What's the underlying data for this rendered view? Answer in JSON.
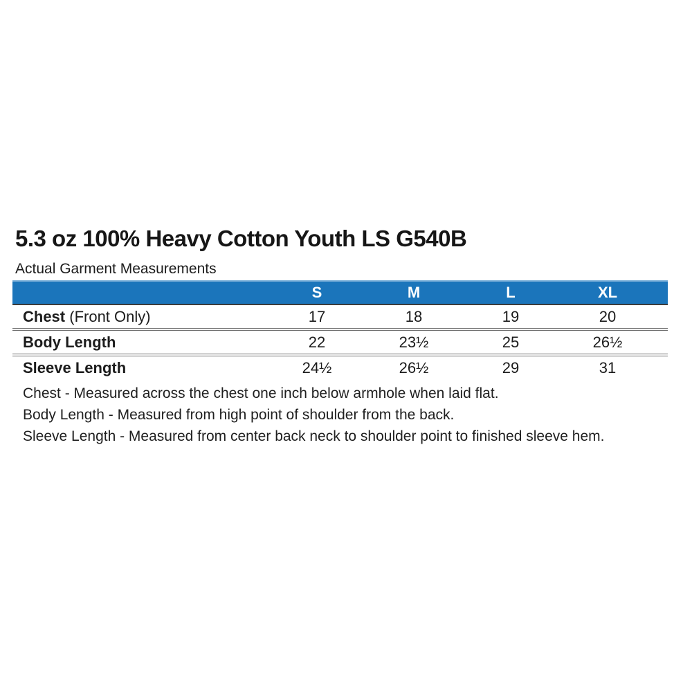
{
  "page": {
    "title": "5.3 oz 100% Heavy Cotton Youth LS G540B",
    "subtitle": "Actual Garment Measurements"
  },
  "table": {
    "size_headers": [
      "S",
      "M",
      "L",
      "XL"
    ],
    "rows": [
      {
        "label": "Chest",
        "label_suffix": " (Front Only)",
        "values": [
          "17",
          "18",
          "19",
          "20"
        ]
      },
      {
        "label": "Body Length",
        "label_suffix": "",
        "values": [
          "22",
          "23½",
          "25",
          "26½"
        ]
      },
      {
        "label": "Sleeve Length",
        "label_suffix": "",
        "values": [
          "24½",
          "26½",
          "29",
          "31"
        ]
      }
    ]
  },
  "footnotes": [
    "Chest - Measured across the chest one inch below armhole when laid flat.",
    "Body Length - Measured from high point of shoulder from the back.",
    "Sleeve Length - Measured from center back neck to shoulder point to finished sleeve hem."
  ],
  "colors": {
    "header_blue": "#1b75bb",
    "separator_gray": "#6f6f6f",
    "text_black": "#1c1c1c"
  }
}
